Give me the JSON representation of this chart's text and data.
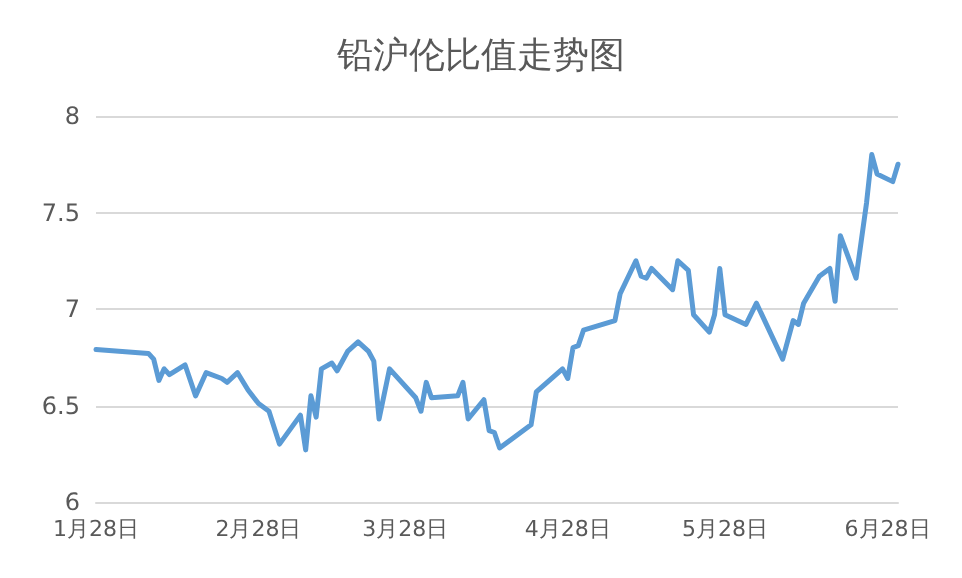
{
  "chart_data": {
    "type": "line",
    "title": "铅沪伦比值走势图",
    "x": [
      "--01-28",
      "--02-07",
      "--02-08",
      "--02-09",
      "--02-10",
      "--02-11",
      "--02-14",
      "--02-16",
      "--02-18",
      "--02-21",
      "--02-22",
      "--02-24",
      "--02-26",
      "--02-28",
      "--03-02",
      "--03-04",
      "--03-08",
      "--03-09",
      "--03-10",
      "--03-11",
      "--03-12",
      "--03-14",
      "--03-15",
      "--03-17",
      "--03-19",
      "--03-21",
      "--03-22",
      "--03-23",
      "--03-25",
      "--03-30",
      "--03-31",
      "--04-01",
      "--04-02",
      "--04-07",
      "--04-08",
      "--04-09",
      "--04-12",
      "--04-13",
      "--04-14",
      "--04-15",
      "--04-21",
      "--04-22",
      "--04-27",
      "--04-28",
      "--04-29",
      "--04-30",
      "--05-01",
      "--05-07",
      "--05-08",
      "--05-11",
      "--05-12",
      "--05-13",
      "--05-14",
      "--05-18",
      "--05-19",
      "--05-21",
      "--05-22",
      "--05-25",
      "--05-26",
      "--05-27",
      "--05-28",
      "--06-01",
      "--06-03",
      "--06-08",
      "--06-10",
      "--06-11",
      "--06-12",
      "--06-15",
      "--06-17",
      "--06-18",
      "--06-19",
      "--06-22",
      "--06-24",
      "--06-25",
      "--06-26",
      "--06-29",
      "--06-30"
    ],
    "series": [
      {
        "color": "#5b9bd5",
        "values": [
          6.79,
          6.77,
          6.74,
          6.63,
          6.69,
          6.66,
          6.71,
          6.55,
          6.67,
          6.64,
          6.62,
          6.67,
          6.58,
          6.51,
          6.47,
          6.3,
          6.45,
          6.27,
          6.55,
          6.44,
          6.69,
          6.72,
          6.68,
          6.78,
          6.83,
          6.78,
          6.73,
          6.43,
          6.69,
          6.54,
          6.47,
          6.62,
          6.54,
          6.55,
          6.62,
          6.43,
          6.53,
          6.37,
          6.36,
          6.28,
          6.4,
          6.57,
          6.69,
          6.64,
          6.8,
          6.81,
          6.89,
          6.94,
          7.08,
          7.25,
          7.17,
          7.16,
          7.21,
          7.1,
          7.25,
          7.2,
          6.97,
          6.88,
          6.97,
          7.21,
          6.97,
          6.92,
          7.03,
          6.74,
          6.94,
          6.92,
          7.03,
          7.17,
          7.21,
          7.04,
          7.38,
          7.16,
          7.55,
          7.8,
          7.7,
          7.66,
          7.75
        ]
      }
    ],
    "xlim": [
      "--01-28",
      "--06-30"
    ],
    "xticks": [
      {
        "value": "--01-28",
        "label": "1月28日"
      },
      {
        "value": "--02-28",
        "label": "2月28日"
      },
      {
        "value": "--03-28",
        "label": "3月28日"
      },
      {
        "value": "--04-28",
        "label": "4月28日"
      },
      {
        "value": "--05-28",
        "label": "5月28日"
      },
      {
        "value": "--06-28",
        "label": "6月28日"
      }
    ],
    "ylim": [
      6,
      8
    ],
    "yticks": [
      6,
      6.5,
      7,
      7.5,
      8
    ],
    "grid": "y",
    "marker": "none",
    "line_style": "solid"
  }
}
